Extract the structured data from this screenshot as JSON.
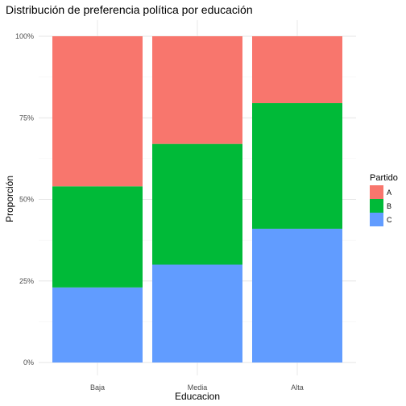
{
  "chart_data": {
    "type": "bar",
    "stacked": "proportion",
    "title": "Distribución de preferencia política por educación",
    "xlabel": "Educacion",
    "ylabel": "Proporción",
    "categories": [
      "Baja",
      "Media",
      "Alta"
    ],
    "series": [
      {
        "name": "A",
        "color": "#F8766D",
        "values": [
          0.46,
          0.33,
          0.205
        ]
      },
      {
        "name": "B",
        "color": "#00BA38",
        "values": [
          0.31,
          0.37,
          0.385
        ]
      },
      {
        "name": "C",
        "color": "#619CFF",
        "values": [
          0.23,
          0.3,
          0.41
        ]
      }
    ],
    "stack_order_bottom_to_top": [
      "C",
      "B",
      "A"
    ],
    "ylim": [
      0,
      1
    ],
    "yticks": [
      0,
      0.25,
      0.5,
      0.75,
      1.0
    ],
    "ytick_labels": [
      "0%",
      "25%",
      "50%",
      "75%",
      "100%"
    ],
    "grid": true,
    "legend": {
      "title": "Partido",
      "position": "right",
      "entries": [
        "A",
        "B",
        "C"
      ]
    }
  }
}
